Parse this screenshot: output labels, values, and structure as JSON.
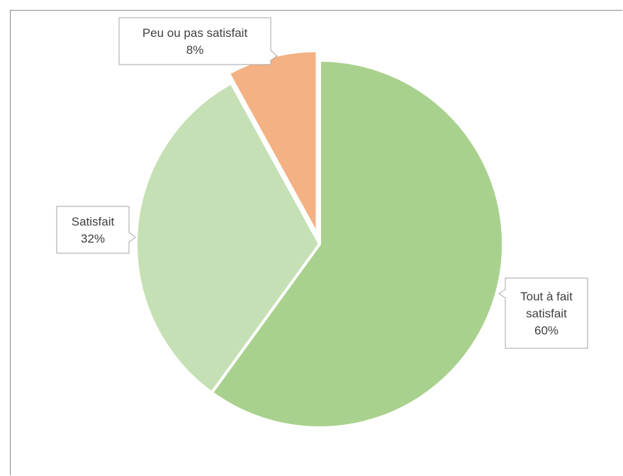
{
  "chart_data": {
    "type": "pie",
    "slices": [
      {
        "label_lines": [
          "Tout à fait",
          "satisfait"
        ],
        "value": 60,
        "value_label": "60%",
        "color": "#a9d18e"
      },
      {
        "label_lines": [
          "Satisfait"
        ],
        "value": 32,
        "value_label": "32%",
        "color": "#c5e0b4"
      },
      {
        "label_lines": [
          "Peu ou pas satisfait"
        ],
        "value": 8,
        "value_label": "8%",
        "color": "#f4b183"
      }
    ],
    "start_angle": "12 o'clock",
    "direction": "clockwise",
    "exploded_slice": "Peu ou pas satisfait",
    "legend": "none",
    "slice_border_color": "#ffffff"
  }
}
